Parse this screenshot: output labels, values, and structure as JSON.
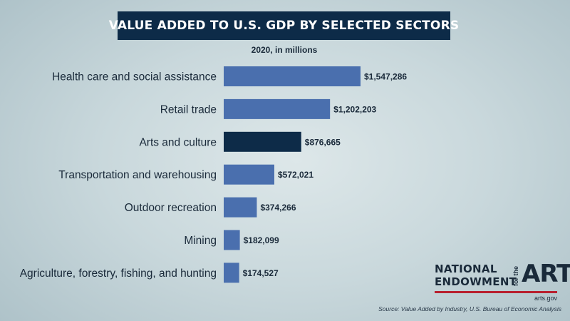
{
  "chart_data": {
    "type": "bar",
    "orientation": "horizontal",
    "title": "VALUE ADDED TO U.S. GDP BY SELECTED SECTORS",
    "subtitle": "2020, in millions",
    "categories": [
      "Health care and social assistance",
      "Retail trade",
      "Arts and culture",
      "Transportation and warehousing",
      "Outdoor recreation",
      "Mining",
      "Agriculture, forestry, fishing, and hunting"
    ],
    "values": [
      1547286,
      1202203,
      876665,
      572021,
      374266,
      182099,
      174527
    ],
    "data_labels": [
      "$1,547,286",
      "$1,202,203",
      "$876,665",
      "$572,021",
      "$374,266",
      "$182,099",
      "$174,527"
    ],
    "highlight_category": "Arts and culture",
    "colors": {
      "bar": "#4a6fae",
      "highlight": "#0d2b48"
    },
    "xlim": [
      0,
      1547286
    ],
    "grid": false,
    "xlabel": "",
    "ylabel": ""
  },
  "logo": {
    "line1": "NATIONAL",
    "line2": "ENDOWMENT",
    "for_the": "for the",
    "arts": "ARTS",
    "url": "arts.gov",
    "rule_color": "#b8202f"
  },
  "source": "Source: Value Added by Industry, U.S. Bureau of Economic Analysis"
}
